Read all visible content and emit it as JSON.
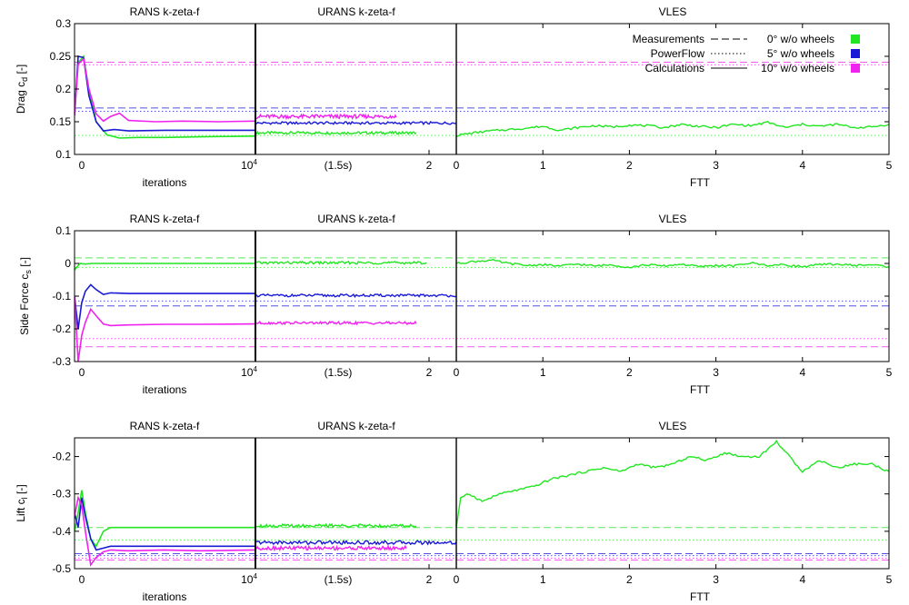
{
  "chart_data": {
    "type": "line",
    "colors": {
      "0deg": "#22e622",
      "5deg": "#1a1ad6",
      "10deg": "#f022f0",
      "axis": "#000000"
    },
    "legend": {
      "placement": "top-right",
      "line_styles": [
        {
          "label": "Measurements",
          "style": "dashed"
        },
        {
          "label": "PowerFlow",
          "style": "dotted"
        },
        {
          "label": "Calculations",
          "style": "solid"
        }
      ],
      "cases": [
        {
          "label": "0° w/o wheels",
          "color_key": "0deg"
        },
        {
          "label": "5° w/o wheels",
          "color_key": "5deg"
        },
        {
          "label": "10° w/o wheels",
          "color_key": "10deg"
        }
      ]
    },
    "panel_titles": [
      "RANS k-zeta-f",
      "URANS k-zeta-f",
      "VLES"
    ],
    "rans_ticks": [
      "0",
      "10⁴"
    ],
    "rans_xlabel": "iterations",
    "urans_ticks": [
      "(1.5s)",
      "2"
    ],
    "vles_ticks": [
      "0",
      "1",
      "2",
      "3",
      "4",
      "5"
    ],
    "vles_xlabel": "FTT",
    "rows": [
      {
        "ylabel": "Drag c_d [-]",
        "ylim": [
          0.1,
          0.3
        ],
        "yticks": [
          0.1,
          0.15,
          0.2,
          0.25,
          0.3
        ],
        "show_legend": true,
        "references": [
          {
            "case": "0deg",
            "style": "dotted",
            "value": 0.129
          },
          {
            "case": "5deg",
            "style": "dashed",
            "value": 0.171
          },
          {
            "case": "5deg",
            "style": "dotted",
            "value": 0.166
          },
          {
            "case": "10deg",
            "style": "dashed",
            "value": 0.241
          },
          {
            "case": "10deg",
            "style": "dotted",
            "value": 0.237
          }
        ],
        "rans": [
          {
            "case": "0deg",
            "x": [
              0,
              0.02,
              0.05,
              0.08,
              0.12,
              0.18,
              0.25,
              0.35,
              0.5,
              0.7,
              1.0
            ],
            "y": [
              0.16,
              0.24,
              0.25,
              0.2,
              0.15,
              0.13,
              0.125,
              0.126,
              0.126,
              0.127,
              0.128
            ]
          },
          {
            "case": "5deg",
            "x": [
              0,
              0.02,
              0.05,
              0.08,
              0.12,
              0.16,
              0.22,
              0.3,
              0.5,
              0.7,
              1.0
            ],
            "y": [
              0.16,
              0.25,
              0.248,
              0.19,
              0.15,
              0.136,
              0.138,
              0.136,
              0.137,
              0.137,
              0.137
            ]
          },
          {
            "case": "10deg",
            "x": [
              0,
              0.02,
              0.05,
              0.08,
              0.12,
              0.16,
              0.2,
              0.25,
              0.3,
              0.45,
              0.6,
              0.8,
              1.0
            ],
            "y": [
              0.16,
              0.238,
              0.246,
              0.2,
              0.162,
              0.151,
              0.158,
              0.163,
              0.152,
              0.15,
              0.151,
              0.15,
              0.151
            ]
          }
        ],
        "urans": [
          {
            "case": "0deg",
            "x_end": 0.8,
            "level": 0.133,
            "noise": 0.002
          },
          {
            "case": "5deg",
            "x_end": 1.0,
            "level": 0.148,
            "noise": 0.002
          },
          {
            "case": "10deg",
            "x_end": 0.7,
            "level": 0.158,
            "noise": 0.003
          }
        ],
        "vles": [
          {
            "case": "0deg",
            "x": [
              0,
              0.2,
              0.4,
              0.6,
              0.8,
              1.0,
              1.2,
              1.4,
              1.6,
              1.8,
              2.0,
              2.2,
              2.4,
              2.6,
              2.8,
              3.0,
              3.2,
              3.4,
              3.6,
              3.8,
              4.0,
              4.2,
              4.4,
              4.6,
              4.8,
              5.0
            ],
            "y": [
              0.129,
              0.133,
              0.136,
              0.138,
              0.14,
              0.143,
              0.137,
              0.141,
              0.144,
              0.142,
              0.145,
              0.144,
              0.141,
              0.146,
              0.143,
              0.141,
              0.146,
              0.144,
              0.149,
              0.141,
              0.146,
              0.143,
              0.146,
              0.141,
              0.142,
              0.146
            ]
          }
        ]
      },
      {
        "ylabel": "Side Force c_s [-]",
        "ylim": [
          -0.3,
          0.1
        ],
        "yticks": [
          -0.3,
          -0.2,
          -0.1,
          0,
          0.1
        ],
        "show_legend": false,
        "references": [
          {
            "case": "0deg",
            "style": "dashed",
            "value": 0.017
          },
          {
            "case": "0deg",
            "style": "dotted",
            "value": -0.012
          },
          {
            "case": "5deg",
            "style": "dotted",
            "value": -0.115
          },
          {
            "case": "5deg",
            "style": "dashed",
            "value": -0.13
          },
          {
            "case": "10deg",
            "style": "dotted",
            "value": -0.23
          },
          {
            "case": "10deg",
            "style": "dashed",
            "value": -0.255
          }
        ],
        "rans": [
          {
            "case": "0deg",
            "x": [
              0,
              0.03,
              0.06,
              0.1,
              0.2,
              0.4,
              0.7,
              1.0
            ],
            "y": [
              -0.02,
              0.0,
              -0.002,
              0.0,
              0.0,
              0.0,
              0.0,
              0.0
            ]
          },
          {
            "case": "5deg",
            "x": [
              0,
              0.02,
              0.04,
              0.06,
              0.09,
              0.12,
              0.16,
              0.2,
              0.3,
              0.5,
              0.7,
              1.0
            ],
            "y": [
              -0.1,
              -0.2,
              -0.12,
              -0.085,
              -0.065,
              -0.08,
              -0.095,
              -0.09,
              -0.092,
              -0.092,
              -0.092,
              -0.092
            ]
          },
          {
            "case": "10deg",
            "x": [
              0,
              0.02,
              0.04,
              0.06,
              0.09,
              0.12,
              0.16,
              0.2,
              0.3,
              0.5,
              0.7,
              1.0
            ],
            "y": [
              -0.1,
              -0.3,
              -0.22,
              -0.18,
              -0.14,
              -0.16,
              -0.185,
              -0.19,
              -0.188,
              -0.186,
              -0.186,
              -0.185
            ]
          }
        ],
        "urans": [
          {
            "case": "0deg",
            "x_end": 0.85,
            "level": 0.002,
            "noise": 0.004
          },
          {
            "case": "5deg",
            "x_end": 1.0,
            "level": -0.098,
            "noise": 0.004
          },
          {
            "case": "10deg",
            "x_end": 0.8,
            "level": -0.182,
            "noise": 0.004
          }
        ],
        "vles": [
          {
            "case": "0deg",
            "x": [
              0,
              0.2,
              0.4,
              0.6,
              0.8,
              1.0,
              1.2,
              1.4,
              1.6,
              1.8,
              2.0,
              2.2,
              2.4,
              2.6,
              2.8,
              3.0,
              3.2,
              3.4,
              3.6,
              3.8,
              4.0,
              4.2,
              4.4,
              4.6,
              4.8,
              5.0
            ],
            "y": [
              0.0,
              0.006,
              0.01,
              0.0,
              -0.006,
              -0.004,
              -0.008,
              -0.002,
              -0.008,
              -0.004,
              -0.012,
              -0.004,
              -0.008,
              -0.002,
              -0.01,
              -0.006,
              -0.008,
              0.002,
              -0.006,
              -0.004,
              -0.01,
              -0.004,
              -0.002,
              -0.006,
              -0.004,
              -0.01
            ]
          }
        ]
      },
      {
        "ylabel": "Lift c_l [-]",
        "ylim": [
          -0.5,
          -0.15
        ],
        "yticks": [
          -0.5,
          -0.4,
          -0.3,
          -0.2
        ],
        "show_legend": false,
        "references": [
          {
            "case": "0deg",
            "style": "dashed",
            "value": -0.39
          },
          {
            "case": "0deg",
            "style": "dotted",
            "value": -0.423
          },
          {
            "case": "5deg",
            "style": "dashed",
            "value": -0.46
          },
          {
            "case": "5deg",
            "style": "dotted",
            "value": -0.465
          },
          {
            "case": "10deg",
            "style": "dashed",
            "value": -0.477
          },
          {
            "case": "10deg",
            "style": "dotted",
            "value": -0.472
          }
        ],
        "rans": [
          {
            "case": "0deg",
            "x": [
              0,
              0.02,
              0.04,
              0.06,
              0.09,
              0.12,
              0.16,
              0.2,
              0.3,
              0.5,
              0.7,
              1.0
            ],
            "y": [
              -0.4,
              -0.35,
              -0.29,
              -0.35,
              -0.42,
              -0.44,
              -0.4,
              -0.39,
              -0.39,
              -0.39,
              -0.39,
              -0.39
            ]
          },
          {
            "case": "5deg",
            "x": [
              0,
              0.02,
              0.04,
              0.06,
              0.09,
              0.12,
              0.16,
              0.2,
              0.3,
              0.5,
              0.7,
              1.0
            ],
            "y": [
              -0.35,
              -0.39,
              -0.31,
              -0.36,
              -0.42,
              -0.45,
              -0.445,
              -0.44,
              -0.44,
              -0.44,
              -0.44,
              -0.44
            ]
          },
          {
            "case": "10deg",
            "x": [
              0,
              0.02,
              0.04,
              0.06,
              0.09,
              0.12,
              0.16,
              0.2,
              0.3,
              0.5,
              0.7,
              1.0
            ],
            "y": [
              -0.36,
              -0.31,
              -0.33,
              -0.4,
              -0.49,
              -0.47,
              -0.455,
              -0.45,
              -0.452,
              -0.45,
              -0.452,
              -0.45
            ]
          }
        ],
        "urans": [
          {
            "case": "0deg",
            "x_end": 0.8,
            "level": -0.385,
            "noise": 0.004
          },
          {
            "case": "5deg",
            "x_end": 1.0,
            "level": -0.43,
            "noise": 0.005
          },
          {
            "case": "10deg",
            "x_end": 0.75,
            "level": -0.445,
            "noise": 0.005
          }
        ],
        "vles": [
          {
            "case": "0deg",
            "x": [
              0,
              0.05,
              0.15,
              0.3,
              0.5,
              0.7,
              0.9,
              1.1,
              1.3,
              1.5,
              1.7,
              1.9,
              2.1,
              2.3,
              2.5,
              2.7,
              2.9,
              3.1,
              3.3,
              3.5,
              3.7,
              3.85,
              4.0,
              4.2,
              4.4,
              4.6,
              4.8,
              5.0
            ],
            "y": [
              -0.39,
              -0.31,
              -0.3,
              -0.32,
              -0.3,
              -0.29,
              -0.28,
              -0.26,
              -0.25,
              -0.24,
              -0.23,
              -0.24,
              -0.22,
              -0.23,
              -0.22,
              -0.2,
              -0.21,
              -0.19,
              -0.2,
              -0.2,
              -0.16,
              -0.2,
              -0.24,
              -0.21,
              -0.23,
              -0.22,
              -0.22,
              -0.24
            ]
          }
        ]
      }
    ]
  }
}
